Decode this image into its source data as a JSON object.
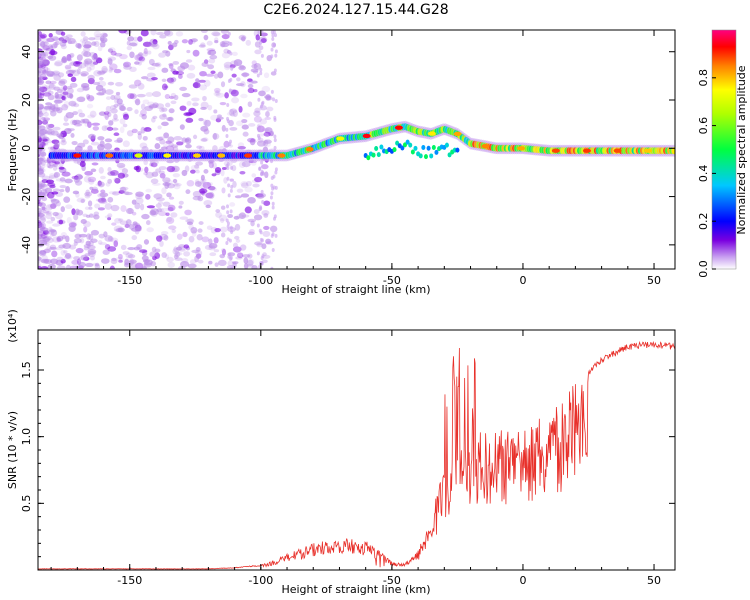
{
  "title": "C2E6.2024.127.15.44.G28",
  "chart_data": [
    {
      "type": "heatmap",
      "xlabel": "Height of straight line (km)",
      "ylabel": "Frequency (Hz)",
      "xlim": [
        -185,
        58
      ],
      "ylim": [
        -50,
        49
      ],
      "x_ticks": [
        -150,
        -100,
        -50,
        0,
        50
      ],
      "y_ticks": [
        -40,
        -20,
        0,
        20,
        40
      ],
      "colorbar": {
        "label": "Normalized spectral amplitude",
        "range": [
          0,
          1
        ],
        "ticks": [
          0.0,
          0.2,
          0.4,
          0.6,
          0.8
        ],
        "tick_labels": [
          "0.0",
          "0.2",
          "0.4",
          "0.6",
          "0.8"
        ]
      },
      "ridge": {
        "height_km": [
          -180,
          -160,
          -140,
          -130,
          -120,
          -110,
          -100,
          -90,
          -80,
          -70,
          -60,
          -50,
          -45,
          -40,
          -35,
          -30,
          -25,
          -20,
          -10,
          0,
          10,
          20,
          30,
          40,
          50,
          58
        ],
        "frequency_hz": [
          -3,
          -3,
          -3,
          -3,
          -3,
          -3,
          -3,
          -3,
          0,
          4,
          5,
          8,
          9,
          7,
          6,
          8,
          6,
          2,
          0,
          0,
          -1,
          -1,
          -1,
          -1,
          -1,
          -1
        ]
      },
      "grid": false
    },
    {
      "type": "line",
      "xlabel": "Height of straight line (km)",
      "ylabel": "SNR (10 * v/v)",
      "y_multiplier": "(x10⁴)",
      "xlim": [
        -185,
        58
      ],
      "ylim": [
        0,
        1.8
      ],
      "x_ticks": [
        -150,
        -100,
        -50,
        0,
        50
      ],
      "y_ticks": [
        0.5,
        1.0,
        1.5
      ],
      "y_tick_labels": [
        "0.5",
        "1.0",
        "1.5"
      ],
      "series_color": "#e8302a",
      "envelope": {
        "height_km": [
          -185,
          -150,
          -120,
          -110,
          -100,
          -95,
          -90,
          -80,
          -70,
          -60,
          -55,
          -50,
          -45,
          -40,
          -35,
          -30,
          -25,
          -20,
          -15,
          -10,
          0,
          10,
          20,
          30,
          40,
          50,
          58
        ],
        "snr_x1e4": [
          0.01,
          0.01,
          0.01,
          0.02,
          0.04,
          0.07,
          0.12,
          0.2,
          0.25,
          0.22,
          0.15,
          0.06,
          0.05,
          0.15,
          0.45,
          0.8,
          1.1,
          1.0,
          1.05,
          1.05,
          1.1,
          1.2,
          1.4,
          1.6,
          1.7,
          1.72,
          1.7
        ]
      },
      "grid": false
    }
  ]
}
